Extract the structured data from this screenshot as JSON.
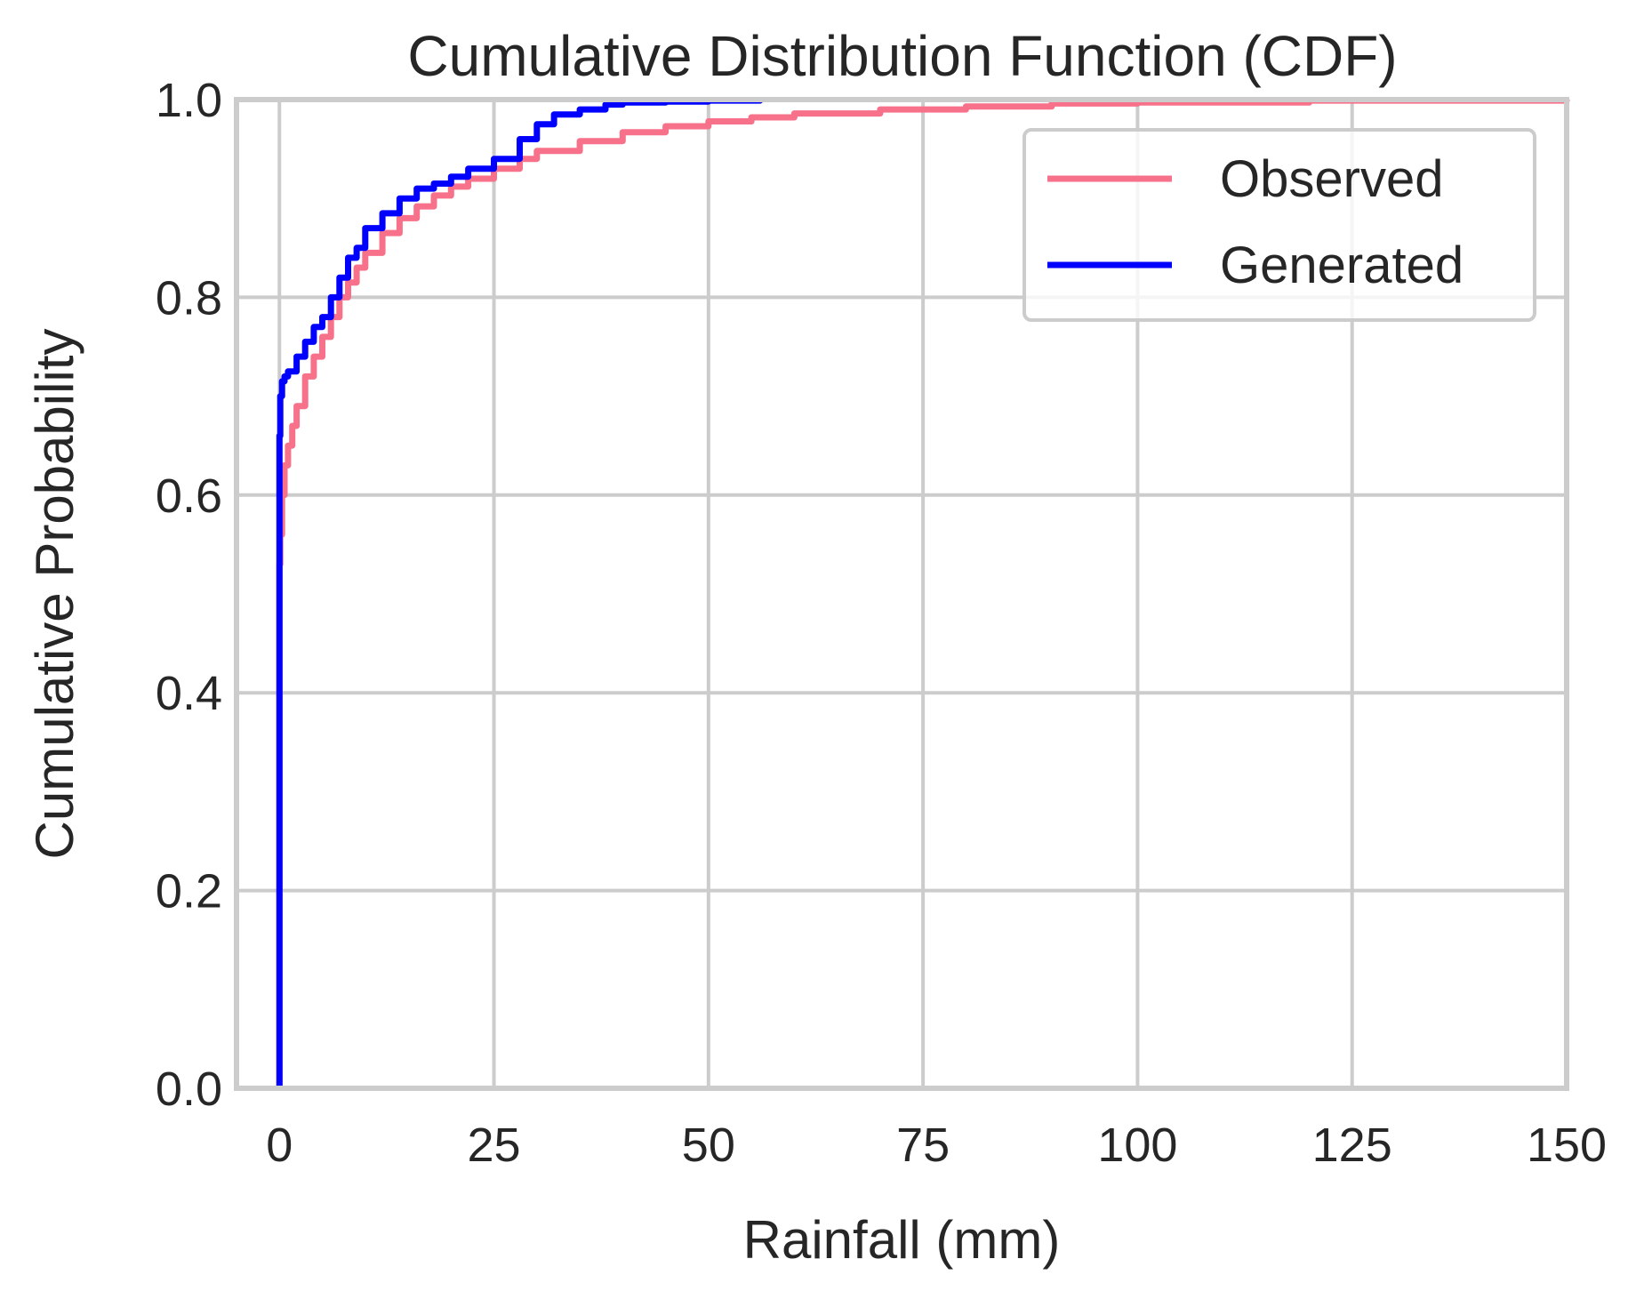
{
  "chart_data": {
    "type": "line",
    "title": "Cumulative Distribution Function (CDF)",
    "xlabel": "Rainfall (mm)",
    "ylabel": "Cumulative Probability",
    "xlim": [
      -5,
      150
    ],
    "ylim": [
      0,
      1
    ],
    "xticks": [
      0,
      25,
      50,
      75,
      100,
      125,
      150
    ],
    "yticks": [
      0.0,
      0.2,
      0.4,
      0.6,
      0.8,
      1.0
    ],
    "xtick_labels": [
      "0",
      "25",
      "50",
      "75",
      100,
      125,
      150
    ],
    "ytick_labels": [
      "0.0",
      "0.2",
      "0.4",
      "0.6",
      "0.8",
      "1.0"
    ],
    "grid": true,
    "legend_position": "top-right",
    "series": [
      {
        "name": "Observed",
        "color": "#f7718a",
        "x": [
          0,
          0,
          0.1,
          0.3,
          0.6,
          1,
          1.5,
          2,
          3,
          4,
          5,
          6,
          7,
          8,
          9,
          10,
          12,
          14,
          16,
          18,
          20,
          22,
          25,
          28,
          30,
          35,
          40,
          45,
          50,
          55,
          60,
          70,
          80,
          90,
          100,
          120,
          150
        ],
        "y": [
          0,
          0.53,
          0.56,
          0.6,
          0.63,
          0.65,
          0.67,
          0.69,
          0.72,
          0.74,
          0.76,
          0.78,
          0.8,
          0.815,
          0.83,
          0.845,
          0.865,
          0.88,
          0.892,
          0.903,
          0.912,
          0.92,
          0.93,
          0.94,
          0.948,
          0.958,
          0.967,
          0.973,
          0.978,
          0.982,
          0.986,
          0.99,
          0.993,
          0.996,
          0.997,
          0.999,
          1.0
        ]
      },
      {
        "name": "Generated",
        "color": "#0000ff",
        "x": [
          0,
          0,
          0.1,
          0.3,
          0.6,
          1,
          2,
          3,
          4,
          5,
          6,
          7,
          8,
          9,
          10,
          12,
          14,
          16,
          18,
          20,
          22,
          25,
          28,
          30,
          32,
          35,
          38,
          40,
          45,
          50,
          56
        ],
        "y": [
          0,
          0.66,
          0.7,
          0.715,
          0.72,
          0.725,
          0.74,
          0.755,
          0.77,
          0.78,
          0.8,
          0.82,
          0.84,
          0.85,
          0.87,
          0.885,
          0.9,
          0.91,
          0.915,
          0.922,
          0.93,
          0.94,
          0.96,
          0.975,
          0.985,
          0.99,
          0.995,
          0.997,
          0.998,
          0.999,
          1.0
        ]
      }
    ]
  }
}
